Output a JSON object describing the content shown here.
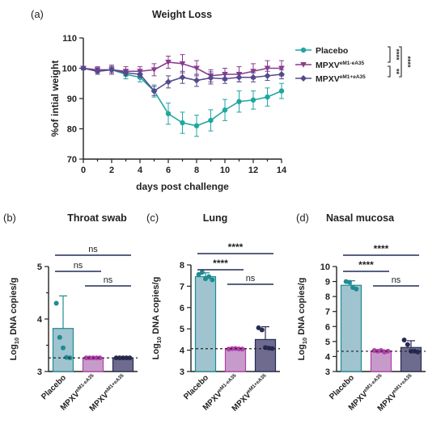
{
  "colors": {
    "placebo": "#1fa7a0",
    "m1": "#8b3a8f",
    "m1b": "#554a8c",
    "bar_placebo": "#9fc4cf",
    "bar_m1": "#c79bc9",
    "bar_m1b": "#6e6b8e",
    "dot_placebo": "#1f8b92",
    "dot_m1": "#b23ea9",
    "dot_m1b": "#262a55"
  },
  "chart_data": [
    {
      "panel": "(a)",
      "type": "line",
      "title": "Weight Loss",
      "xlabel": "days post challenge",
      "ylabel": "%of intial weight",
      "xlim": [
        0,
        14
      ],
      "ylim": [
        70,
        110
      ],
      "xticks": [
        "0",
        "2",
        "4",
        "6",
        "8",
        "10",
        "12",
        "14"
      ],
      "yticks": [
        "70",
        "80",
        "90",
        "100",
        "110"
      ],
      "x": [
        0,
        1,
        2,
        3,
        4,
        5,
        6,
        7,
        8,
        9,
        10,
        11,
        12,
        13,
        14
      ],
      "series": [
        {
          "name": "Placebo",
          "sup": "",
          "marker": "circle",
          "color": "#1fa7a0",
          "values": [
            100,
            99,
            99.5,
            98,
            97,
            92.5,
            85,
            82,
            81,
            82.8,
            86.2,
            89,
            89.5,
            90.5,
            92.5
          ],
          "err": [
            0.5,
            1,
            1.5,
            1.5,
            1.5,
            2,
            3.5,
            3.5,
            3.5,
            3.5,
            3.5,
            3.5,
            3,
            3,
            2.5
          ]
        },
        {
          "name": "MPXV",
          "sup": "eM1-eA35",
          "marker": "triangle",
          "color": "#8b3a8f",
          "values": [
            100,
            99.5,
            99.5,
            99,
            99,
            99.5,
            102,
            101.5,
            100,
            97.5,
            98,
            98,
            99,
            100,
            100
          ],
          "err": [
            0.5,
            1,
            1.5,
            1.5,
            1.5,
            2,
            2,
            3,
            2.5,
            2,
            2,
            2.5,
            2.5,
            2.5,
            2.5
          ]
        },
        {
          "name": "MPXV",
          "sup": "eM1+eA35",
          "marker": "diamond",
          "color": "#554a8c",
          "values": [
            100,
            99,
            99.5,
            98.5,
            98,
            92.5,
            95.5,
            97,
            96,
            96.8,
            96.5,
            97,
            97,
            97.5,
            98
          ],
          "err": [
            0.5,
            1,
            1,
            1,
            1,
            1.5,
            2,
            2,
            2,
            2,
            1.5,
            1.5,
            1.5,
            1.5,
            1.5
          ]
        }
      ],
      "significance": [
        {
          "pair": "Placebo vs eM1-eA35",
          "label": "****"
        },
        {
          "pair": "Placebo vs eM1+eA35",
          "label": "****"
        },
        {
          "pair": "eM1-eA35 vs eM1+eA35",
          "label": "**"
        }
      ]
    },
    {
      "panel": "(b)",
      "type": "bar",
      "title": "Throat swab",
      "ylabel": "Log10 DNA copies/g",
      "ylim": [
        3,
        5
      ],
      "yticks": [
        "3",
        "4",
        "5"
      ],
      "categories": [
        "Placebo",
        "MPXV",
        "MPXV"
      ],
      "category_sup": [
        "",
        "eM1-eA35",
        "eM1+eA35"
      ],
      "values": [
        3.82,
        3.26,
        3.26
      ],
      "err": [
        0.62,
        0,
        0
      ],
      "points": [
        [
          4.3,
          3.65,
          3.45,
          3.27,
          3.26
        ],
        [
          3.26,
          3.26,
          3.26,
          3.26,
          3.26
        ],
        [
          3.26,
          3.26,
          3.26,
          3.26,
          3.26
        ]
      ],
      "detection_limit": 3.26,
      "comparisons": [
        {
          "from": 0,
          "to": 2,
          "label": "ns"
        },
        {
          "from": 0,
          "to": 1,
          "label": "ns"
        },
        {
          "from": 1,
          "to": 2,
          "label": "ns"
        }
      ]
    },
    {
      "panel": "(c)",
      "type": "bar",
      "title": "Lung",
      "ylabel": "Log10 DNA copies/g",
      "ylim": [
        3,
        8
      ],
      "yticks": [
        "3",
        "4",
        "5",
        "6",
        "7",
        "8"
      ],
      "categories": [
        "Placebo",
        "MPXV",
        "MPXV"
      ],
      "category_sup": [
        "",
        "eM1-eA35",
        "eM1+eA35"
      ],
      "values": [
        7.45,
        4.07,
        4.5
      ],
      "err": [
        0.18,
        0.03,
        0.6
      ],
      "points": [
        [
          7.55,
          7.65,
          7.35,
          7.45,
          7.3
        ],
        [
          4.05,
          4.07,
          4.08,
          4.06,
          4.05
        ],
        [
          5.05,
          4.95,
          4.12,
          4.1,
          4.08
        ]
      ],
      "detection_limit": 4.07,
      "comparisons": [
        {
          "from": 0,
          "to": 2,
          "label": "****"
        },
        {
          "from": 0,
          "to": 1,
          "label": "****"
        },
        {
          "from": 1,
          "to": 2,
          "label": "ns"
        }
      ]
    },
    {
      "panel": "(d)",
      "type": "bar",
      "title": "Nasal mucosa",
      "ylabel": "Log10 DNA copies/g",
      "ylim": [
        3,
        10
      ],
      "yticks": [
        "3",
        "4",
        "5",
        "6",
        "7",
        "8",
        "9",
        "10"
      ],
      "categories": [
        "Placebo",
        "MPXV",
        "MPXV"
      ],
      "category_sup": [
        "",
        "eM1-eA35",
        "eM1+eA35"
      ],
      "values": [
        8.75,
        4.37,
        4.6
      ],
      "err": [
        0.3,
        0.08,
        0.45
      ],
      "points": [
        [
          9.0,
          8.95,
          8.6,
          8.5
        ],
        [
          4.4,
          4.35,
          4.4,
          4.3,
          4.35
        ],
        [
          5.1,
          4.8,
          4.35,
          4.35,
          4.3
        ]
      ],
      "detection_limit": 4.35,
      "comparisons": [
        {
          "from": 0,
          "to": 2,
          "label": "****"
        },
        {
          "from": 0,
          "to": 1,
          "label": "****"
        },
        {
          "from": 1,
          "to": 2,
          "label": "ns"
        }
      ]
    }
  ]
}
